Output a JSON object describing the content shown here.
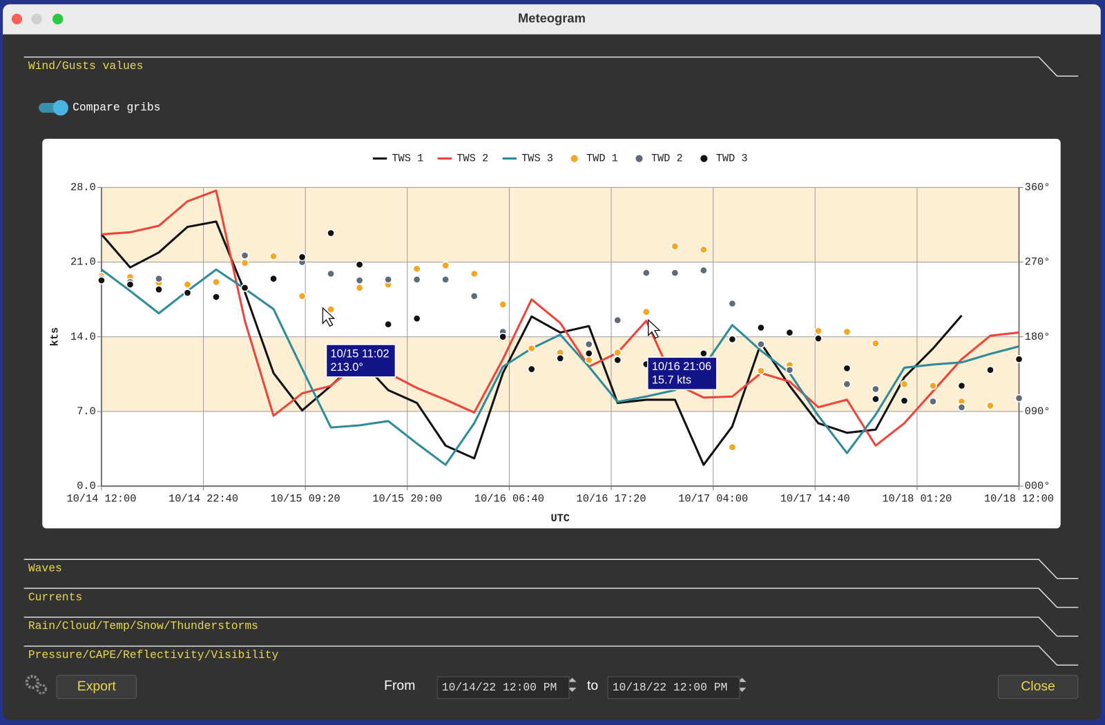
{
  "window": {
    "title": "Meteogram"
  },
  "sections": [
    "Wind/Gusts values",
    "Waves",
    "Currents",
    "Rain/Cloud/Temp/Snow/Thunderstorms",
    "Pressure/CAPE/Reflectivity/Visibility"
  ],
  "toggle": {
    "label": "Compare gribs"
  },
  "footer": {
    "export": "Export",
    "from": "From",
    "from_value": "10/14/22 12:00 PM",
    "to": "to",
    "to_value": "10/18/22 12:00 PM",
    "close": "Close"
  },
  "chart_data": {
    "type": "line",
    "x_label": "UTC",
    "y_label": "kts",
    "grid": true,
    "legend": "top",
    "bands": {
      "ranges": [
        [
          7,
          14
        ],
        [
          21,
          28
        ]
      ],
      "color": "#fdefd3"
    },
    "x": [
      "10/14 12:00",
      "10/14 15:00",
      "10/14 18:00",
      "10/14 21:00",
      "10/15 00:00",
      "10/15 03:00",
      "10/15 06:00",
      "10/15 09:00",
      "10/15 12:00",
      "10/15 15:00",
      "10/15 18:00",
      "10/15 21:00",
      "10/16 00:00",
      "10/16 03:00",
      "10/16 06:00",
      "10/16 09:00",
      "10/16 12:00",
      "10/16 15:00",
      "10/16 18:00",
      "10/16 21:00",
      "10/17 00:00",
      "10/17 03:00",
      "10/17 06:00",
      "10/17 09:00",
      "10/17 12:00",
      "10/17 15:00",
      "10/17 18:00",
      "10/17 21:00",
      "10/18 00:00",
      "10/18 03:00",
      "10/18 06:00",
      "10/18 09:00",
      "10/18 12:00"
    ],
    "xlim": [
      "10/14 12:00",
      "10/18 12:00"
    ],
    "xticks": [
      "10/14 12:00",
      "10/14 22:40",
      "10/15 09:20",
      "10/15 20:00",
      "10/16 06:40",
      "10/16 17:20",
      "10/17 04:00",
      "10/17 14:40",
      "10/18 01:20",
      "10/18 12:00"
    ],
    "ylim": [
      0,
      28
    ],
    "yticks": [
      {
        "value": 0,
        "label": "0.0"
      },
      {
        "value": 7,
        "label": "7.0"
      },
      {
        "value": 14,
        "label": "14.0"
      },
      {
        "value": 21,
        "label": "21.0"
      },
      {
        "value": 28,
        "label": "28.0"
      }
    ],
    "y2lim": [
      0,
      360
    ],
    "y2ticks": [
      {
        "value": 0,
        "label": "000°"
      },
      {
        "value": 90,
        "label": "090°"
      },
      {
        "value": 180,
        "label": "180°"
      },
      {
        "value": 270,
        "label": "270°"
      },
      {
        "value": 360,
        "label": "360°"
      }
    ],
    "series": [
      {
        "name": "TWS 1",
        "color": "#111111",
        "type": "line",
        "values": [
          23.6,
          20.5,
          21.9,
          24.3,
          24.8,
          18.2,
          10.6,
          7.1,
          9.4,
          11.9,
          9.0,
          7.8,
          3.8,
          2.6,
          10.6,
          15.9,
          14.4,
          15.0,
          7.8,
          8.1,
          8.1,
          2.0,
          5.6,
          13.4,
          9.4,
          5.9,
          5.0,
          5.3,
          10.2,
          12.9,
          16.0,
          null,
          null
        ]
      },
      {
        "name": "TWS 2",
        "color": "#f0433a",
        "type": "line",
        "values": [
          23.6,
          23.8,
          24.4,
          26.7,
          27.7,
          15.5,
          6.6,
          8.7,
          9.4,
          11.6,
          10.6,
          9.2,
          8.1,
          6.9,
          11.9,
          17.5,
          15.3,
          11.2,
          12.5,
          15.5,
          9.6,
          8.3,
          8.4,
          10.6,
          9.8,
          7.4,
          8.1,
          3.8,
          5.9,
          8.9,
          11.9,
          14.1,
          14.4
        ]
      },
      {
        "name": "TWS 3",
        "color": "#2e8b9a",
        "type": "line",
        "values": [
          20.3,
          18.3,
          16.2,
          18.3,
          20.3,
          18.5,
          16.6,
          11.0,
          5.5,
          5.7,
          6.1,
          4.0,
          2.0,
          5.9,
          11.2,
          12.9,
          14.2,
          11.2,
          7.9,
          8.4,
          9.0,
          11.2,
          15.1,
          12.7,
          10.6,
          6.6,
          3.1,
          6.7,
          11.1,
          11.4,
          11.6,
          12.4,
          13.1
        ]
      },
      {
        "name": "TWD 1",
        "color": "#f5a623",
        "type": "scatter",
        "axis": "y2",
        "values": [
          253,
          252,
          245,
          243,
          246,
          269,
          277,
          229,
          213,
          239,
          243,
          262,
          266,
          256,
          219,
          166,
          161,
          152,
          161,
          210,
          289,
          285,
          47,
          139,
          146,
          187,
          186,
          172,
          123,
          121,
          102,
          97,
          null
        ]
      },
      {
        "name": "TWD 2",
        "color": "#5f6b7a",
        "type": "scatter",
        "axis": "y2",
        "values": [
          250,
          246,
          250,
          233,
          null,
          278,
          null,
          270,
          256,
          248,
          249,
          249,
          249,
          229,
          186,
          null,
          null,
          171,
          200,
          257,
          257,
          260,
          220,
          171,
          140,
          null,
          123,
          117,
          null,
          102,
          95,
          null,
          106
        ]
      },
      {
        "name": "TWD 3",
        "color": "#111111",
        "type": "scatter",
        "axis": "y2",
        "values": [
          248,
          243,
          237,
          233,
          228,
          239,
          250,
          276,
          305,
          267,
          195,
          202,
          null,
          null,
          180,
          141,
          154,
          160,
          152,
          147,
          null,
          160,
          177,
          191,
          185,
          178,
          142,
          105,
          103,
          null,
          121,
          140,
          153
        ]
      }
    ],
    "annotations": [
      {
        "lines": [
          "10/15 11:02",
          "213.0°"
        ]
      },
      {
        "lines": [
          "10/16 21:06",
          "15.7 kts"
        ]
      }
    ]
  }
}
